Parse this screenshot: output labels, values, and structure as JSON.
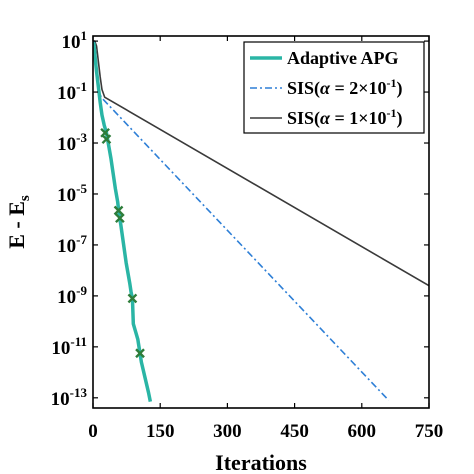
{
  "chart_data": {
    "type": "line",
    "xlabel": "Iterations",
    "ylabel_main": "E - E",
    "ylabel_sub": "s",
    "xlim": [
      0,
      750
    ],
    "ylim_exp": [
      -13.4,
      1.2
    ],
    "yscale": "log",
    "xticks": [
      {
        "value": 0,
        "label": "0"
      },
      {
        "value": 150,
        "label": "150"
      },
      {
        "value": 300,
        "label": "300"
      },
      {
        "value": 450,
        "label": "450"
      },
      {
        "value": 600,
        "label": "600"
      },
      {
        "value": 750,
        "label": "750"
      }
    ],
    "yticks": [
      {
        "exp": 1,
        "base": "10",
        "sup": "1"
      },
      {
        "exp": -1,
        "base": "10",
        "sup": "-1"
      },
      {
        "exp": -3,
        "base": "10",
        "sup": "-3"
      },
      {
        "exp": -5,
        "base": "10",
        "sup": "-5"
      },
      {
        "exp": -7,
        "base": "10",
        "sup": "-7"
      },
      {
        "exp": -9,
        "base": "10",
        "sup": "-9"
      },
      {
        "exp": -11,
        "base": "10",
        "sup": "-11"
      },
      {
        "exp": -13,
        "base": "10",
        "sup": "-13"
      }
    ],
    "legend_position": "top-right",
    "series": [
      {
        "name": "Adaptive APG",
        "color": "#2ab5a5",
        "style": "solid",
        "points": [
          [
            0,
            0.8
          ],
          [
            2,
            0.9
          ],
          [
            5,
            0.3
          ],
          [
            8,
            -0.2
          ],
          [
            12,
            -0.8
          ],
          [
            16,
            -1.4
          ],
          [
            20,
            -1.9
          ],
          [
            25,
            -2.3
          ],
          [
            30,
            -2.6
          ],
          [
            35,
            -3.1
          ],
          [
            40,
            -3.6
          ],
          [
            45,
            -4.2
          ],
          [
            50,
            -4.8
          ],
          [
            55,
            -5.3
          ],
          [
            58,
            -5.75
          ],
          [
            62,
            -6.2
          ],
          [
            66,
            -6.7
          ],
          [
            70,
            -7.2
          ],
          [
            74,
            -7.7
          ],
          [
            78,
            -8.1
          ],
          [
            82,
            -8.5
          ],
          [
            85,
            -8.85
          ],
          [
            88,
            -9.1
          ],
          [
            90,
            -10.1
          ],
          [
            95,
            -10.4
          ],
          [
            100,
            -10.7
          ],
          [
            104,
            -11.15
          ],
          [
            108,
            -11.6
          ],
          [
            112,
            -11.9
          ],
          [
            116,
            -12.2
          ],
          [
            120,
            -12.5
          ],
          [
            124,
            -12.8
          ],
          [
            128,
            -13.15
          ]
        ],
        "markers": [
          [
            27,
            -2.6
          ],
          [
            30,
            -2.85
          ],
          [
            57,
            -5.65
          ],
          [
            60,
            -5.95
          ],
          [
            88,
            -9.1
          ],
          [
            105,
            -11.25
          ]
        ],
        "marker_color": "#2e7d3a"
      },
      {
        "name": "SIS(α = 2×10⁻¹)",
        "legend_base": "SIS(",
        "legend_alpha": "α",
        "legend_eq": " = 2×10",
        "legend_sup": "-1",
        "legend_close": ")",
        "color": "#2e7fd6",
        "style": "dashdot",
        "points": [
          [
            0,
            1.0
          ],
          [
            3,
            0.95
          ],
          [
            6,
            0.5
          ],
          [
            9,
            -0.3
          ],
          [
            13,
            -0.9
          ],
          [
            18,
            -1.2
          ],
          [
            660,
            -13.1
          ]
        ]
      },
      {
        "name": "SIS(α = 1×10⁻¹)",
        "legend_base": "SIS(",
        "legend_alpha": "α",
        "legend_eq": " = 1×10",
        "legend_sup": "-1",
        "legend_close": ")",
        "color": "#3a3a3a",
        "style": "solid",
        "points": [
          [
            0,
            1.0
          ],
          [
            4,
            1.0
          ],
          [
            8,
            0.8
          ],
          [
            12,
            0.2
          ],
          [
            16,
            -0.4
          ],
          [
            20,
            -0.9
          ],
          [
            26,
            -1.2
          ],
          [
            750,
            -8.6
          ]
        ]
      }
    ]
  }
}
